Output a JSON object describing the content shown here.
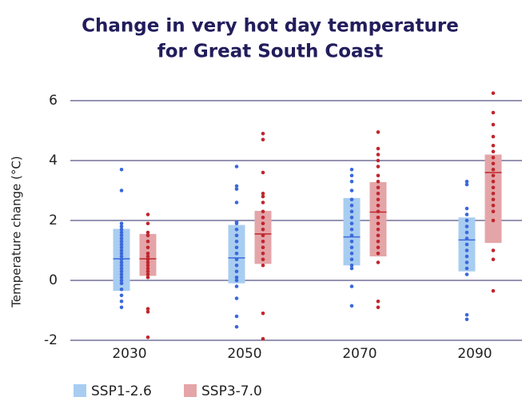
{
  "chart_data": {
    "type": "range-dot",
    "title": [
      "Change in very hot day temperature",
      "for Great South Coast"
    ],
    "y_label": "Temperature change (°C)",
    "categories": [
      "2030",
      "2050",
      "2070",
      "2090"
    ],
    "ylim": [
      -2,
      6.6
    ],
    "yticks": [
      -2,
      0,
      2,
      4,
      6
    ],
    "grid": true,
    "series": [
      {
        "name": "SSP1-2.6",
        "color": "#3b68dc",
        "box_color": "#a8cdf1",
        "low": [
          -0.35,
          -0.1,
          0.5,
          0.3
        ],
        "median": [
          0.72,
          0.75,
          1.45,
          1.35
        ],
        "high": [
          1.72,
          1.85,
          2.75,
          2.1
        ],
        "points": [
          [
            3.7,
            3.0,
            1.9,
            1.8,
            1.7,
            1.6,
            1.5,
            1.4,
            1.3,
            1.2,
            1.1,
            1.0,
            0.9,
            0.8,
            0.7,
            0.6,
            0.5,
            0.4,
            0.3,
            0.2,
            0.1,
            0,
            -0.1,
            -0.3,
            -0.5,
            -0.7,
            -0.9
          ],
          [
            3.8,
            3.15,
            3.05,
            2.6,
            1.95,
            1.9,
            1.7,
            1.5,
            1.3,
            1.1,
            0.9,
            0.7,
            0.5,
            0.3,
            0.1,
            0,
            -0.2,
            -0.6,
            -1.2,
            -1.55
          ],
          [
            3.7,
            3.5,
            3.3,
            3.0,
            2.7,
            2.5,
            2.3,
            2.1,
            1.9,
            1.7,
            1.5,
            1.3,
            1.1,
            0.9,
            0.7,
            0.5,
            0.4,
            -0.2,
            -0.85
          ],
          [
            3.3,
            3.2,
            2.4,
            2.2,
            2.0,
            1.8,
            1.6,
            1.4,
            1.2,
            1.0,
            0.8,
            0.6,
            0.4,
            0.2,
            -1.15,
            -1.3
          ]
        ]
      },
      {
        "name": "SSP3-7.0",
        "color": "#c0262d",
        "box_color": "#e4a5a8",
        "low": [
          0.15,
          0.55,
          0.8,
          1.25
        ],
        "median": [
          0.72,
          1.55,
          2.28,
          3.6
        ],
        "high": [
          1.55,
          2.32,
          3.28,
          4.2
        ],
        "points": [
          [
            2.2,
            1.9,
            1.6,
            1.5,
            1.3,
            1.1,
            0.9,
            0.8,
            0.7,
            0.6,
            0.5,
            0.4,
            0.3,
            0.2,
            0.1,
            -0.95,
            -1.05,
            -1.9
          ],
          [
            4.9,
            4.7,
            3.6,
            2.9,
            2.8,
            2.6,
            2.3,
            2.1,
            1.9,
            1.7,
            1.5,
            1.3,
            1.1,
            0.9,
            0.7,
            0.5,
            -1.1,
            -1.95
          ],
          [
            4.95,
            4.4,
            4.2,
            4.0,
            3.8,
            3.5,
            3.3,
            3.1,
            2.9,
            2.7,
            2.5,
            2.3,
            2.1,
            1.9,
            1.7,
            1.5,
            1.3,
            1.1,
            0.9,
            0.6,
            -0.7,
            -0.9
          ],
          [
            6.25,
            5.6,
            5.2,
            4.8,
            4.5,
            4.3,
            4.1,
            3.9,
            3.7,
            3.5,
            3.3,
            3.1,
            2.9,
            2.7,
            2.5,
            2.3,
            2.0,
            1.0,
            0.7,
            -0.35
          ]
        ]
      }
    ]
  }
}
